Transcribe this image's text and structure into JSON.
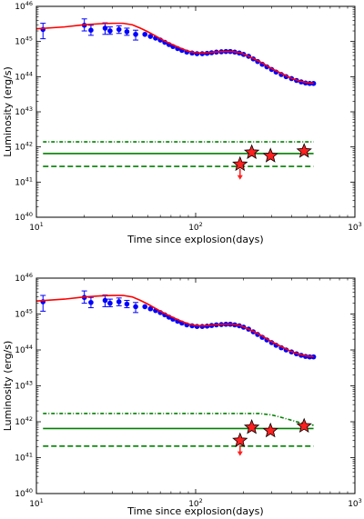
{
  "chart_data": [
    {
      "type": "scatter",
      "panel": "top",
      "xlabel": "Time since explosion(days)",
      "ylabel": "Luminosity (erg/s)",
      "x_scale": "log",
      "y_scale": "log",
      "xlim": [
        10,
        1000
      ],
      "ylim": [
        1e+40,
        1e+46
      ],
      "x_ticks": [
        {
          "value": 10,
          "base": "10",
          "exp": "1"
        },
        {
          "value": 100,
          "base": "10",
          "exp": "2"
        },
        {
          "value": 1000,
          "base": "10",
          "exp": "3"
        }
      ],
      "y_ticks": [
        {
          "value": 1e+40,
          "base": "10",
          "exp": "40"
        },
        {
          "value": 1e+41,
          "base": "10",
          "exp": "41"
        },
        {
          "value": 1e+42,
          "base": "10",
          "exp": "42"
        },
        {
          "value": 1e+43,
          "base": "10",
          "exp": "43"
        },
        {
          "value": 1e+44,
          "base": "10",
          "exp": "44"
        },
        {
          "value": 1e+45,
          "base": "10",
          "exp": "45"
        },
        {
          "value": 1e+46,
          "base": "10",
          "exp": "46"
        }
      ],
      "grid": false,
      "colors": {
        "data": "#0000ff",
        "model": "#ff0000",
        "limits": "#007f00",
        "stars": "#ff2020",
        "arrow": "#ff2020"
      },
      "series": [
        {
          "kind": "points_with_errors",
          "points": [
            {
              "x": 11,
              "y": 2.2e+45,
              "yerr": [
                1.2e+45,
                3.3e+45
              ]
            },
            {
              "x": 20,
              "y": 2.9e+45,
              "yerr": [
                2e+45,
                4.4e+45
              ]
            },
            {
              "x": 22,
              "y": 2.1e+45,
              "yerr": [
                1.5e+45,
                2.9e+45
              ]
            },
            {
              "x": 27,
              "y": 2.4e+45,
              "yerr": [
                1.6e+45,
                3.4e+45
              ]
            },
            {
              "x": 29,
              "y": 2e+45,
              "yerr": [
                1.6e+45,
                2.6e+45
              ]
            },
            {
              "x": 33,
              "y": 2.2e+45,
              "yerr": [
                1.7e+45,
                2.8e+45
              ]
            },
            {
              "x": 37,
              "y": 1.9e+45,
              "yerr": [
                1.5e+45,
                2.4e+45
              ]
            },
            {
              "x": 42,
              "y": 1.6e+45,
              "yerr": [
                1.1e+45,
                2.1e+45
              ]
            },
            {
              "x": 48,
              "y": 1.6e+45
            },
            {
              "x": 52,
              "y": 1.4e+45
            },
            {
              "x": 56,
              "y": 1.25e+45
            },
            {
              "x": 60,
              "y": 1.1e+45
            },
            {
              "x": 64,
              "y": 9.5e+44
            },
            {
              "x": 68,
              "y": 8.2e+44
            },
            {
              "x": 72,
              "y": 7.2e+44
            },
            {
              "x": 77,
              "y": 6.3e+44
            },
            {
              "x": 82,
              "y": 5.6e+44
            },
            {
              "x": 88,
              "y": 5e+44
            },
            {
              "x": 95,
              "y": 4.7e+44
            },
            {
              "x": 102,
              "y": 4.5e+44
            },
            {
              "x": 110,
              "y": 4.5e+44
            },
            {
              "x": 118,
              "y": 4.6e+44
            },
            {
              "x": 126,
              "y": 4.8e+44
            },
            {
              "x": 135,
              "y": 5e+44
            },
            {
              "x": 145,
              "y": 5.1e+44
            },
            {
              "x": 155,
              "y": 5.2e+44
            },
            {
              "x": 165,
              "y": 5.2e+44
            },
            {
              "x": 176,
              "y": 5e+44
            },
            {
              "x": 188,
              "y": 4.7e+44
            },
            {
              "x": 200,
              "y": 4.3e+44
            },
            {
              "x": 215,
              "y": 3.8e+44
            },
            {
              "x": 230,
              "y": 3.2e+44
            },
            {
              "x": 245,
              "y": 2.7e+44
            },
            {
              "x": 262,
              "y": 2.25e+44
            },
            {
              "x": 280,
              "y": 1.9e+44
            },
            {
              "x": 300,
              "y": 1.6e+44
            },
            {
              "x": 320,
              "y": 1.35e+44
            },
            {
              "x": 345,
              "y": 1.15e+44
            },
            {
              "x": 370,
              "y": 1e+44
            },
            {
              "x": 400,
              "y": 8.8e+43
            },
            {
              "x": 430,
              "y": 7.8e+43
            },
            {
              "x": 460,
              "y": 7.1e+43
            },
            {
              "x": 490,
              "y": 6.6e+43
            },
            {
              "x": 520,
              "y": 6.4e+43
            },
            {
              "x": 550,
              "y": 6.4e+43
            }
          ]
        },
        {
          "kind": "model_curve",
          "points": [
            [
              10,
              2.3e+45
            ],
            [
              15,
              2.6e+45
            ],
            [
              20,
              3e+45
            ],
            [
              25,
              3.2e+45
            ],
            [
              30,
              3.3e+45
            ],
            [
              35,
              3.3e+45
            ],
            [
              40,
              3e+45
            ],
            [
              45,
              2.4e+45
            ],
            [
              50,
              1.9e+45
            ],
            [
              55,
              1.5e+45
            ],
            [
              60,
              1.2e+45
            ],
            [
              65,
              1e+45
            ],
            [
              70,
              8.5e+44
            ],
            [
              80,
              6.5e+44
            ],
            [
              90,
              5.3e+44
            ],
            [
              100,
              4.8e+44
            ],
            [
              110,
              4.7e+44
            ],
            [
              120,
              4.8e+44
            ],
            [
              130,
              5e+44
            ],
            [
              150,
              5.2e+44
            ],
            [
              170,
              5.2e+44
            ],
            [
              190,
              4.8e+44
            ],
            [
              210,
              4e+44
            ],
            [
              230,
              3.3e+44
            ],
            [
              260,
              2.5e+44
            ],
            [
              300,
              1.7e+44
            ],
            [
              350,
              1.2e+44
            ],
            [
              400,
              9e+43
            ],
            [
              450,
              7.5e+43
            ],
            [
              500,
              6.8e+43
            ],
            [
              550,
              6.5e+43
            ]
          ]
        },
        {
          "kind": "limit_line",
          "style": "dashdot",
          "points": [
            [
              11,
              1.4e+42
            ],
            [
              550,
              1.4e+42
            ]
          ]
        },
        {
          "kind": "limit_line",
          "style": "solid",
          "points": [
            [
              11,
              6.5e+41
            ],
            [
              550,
              6.5e+41
            ]
          ]
        },
        {
          "kind": "limit_line",
          "style": "dashed",
          "points": [
            [
              11,
              2.8e+41
            ],
            [
              550,
              2.8e+41
            ]
          ]
        },
        {
          "kind": "stars",
          "points": [
            {
              "x": 190,
              "y": 3.2e+41,
              "upper_limit": true
            },
            {
              "x": 225,
              "y": 7e+41
            },
            {
              "x": 295,
              "y": 5.6e+41
            },
            {
              "x": 480,
              "y": 7.6e+41
            }
          ]
        }
      ]
    },
    {
      "type": "scatter",
      "panel": "bottom",
      "xlabel": "Time since explosion(days)",
      "ylabel": "Luminosity (erg/s)",
      "x_scale": "log",
      "y_scale": "log",
      "xlim": [
        10,
        1000
      ],
      "ylim": [
        1e+40,
        1e+46
      ],
      "x_ticks": [
        {
          "value": 10,
          "base": "10",
          "exp": "1"
        },
        {
          "value": 100,
          "base": "10",
          "exp": "2"
        },
        {
          "value": 1000,
          "base": "10",
          "exp": "3"
        }
      ],
      "y_ticks": [
        {
          "value": 1e+40,
          "base": "10",
          "exp": "40"
        },
        {
          "value": 1e+41,
          "base": "10",
          "exp": "41"
        },
        {
          "value": 1e+42,
          "base": "10",
          "exp": "42"
        },
        {
          "value": 1e+43,
          "base": "10",
          "exp": "43"
        },
        {
          "value": 1e+44,
          "base": "10",
          "exp": "44"
        },
        {
          "value": 1e+45,
          "base": "10",
          "exp": "45"
        },
        {
          "value": 1e+46,
          "base": "10",
          "exp": "46"
        }
      ],
      "grid": false,
      "colors": {
        "data": "#0000ff",
        "model": "#ff0000",
        "limits": "#007f00",
        "stars": "#ff2020",
        "arrow": "#ff2020"
      },
      "series": [
        {
          "kind": "points_with_errors",
          "points": [
            {
              "x": 11,
              "y": 2.2e+45,
              "yerr": [
                1.2e+45,
                3.3e+45
              ]
            },
            {
              "x": 20,
              "y": 2.9e+45,
              "yerr": [
                2e+45,
                4.4e+45
              ]
            },
            {
              "x": 22,
              "y": 2.1e+45,
              "yerr": [
                1.5e+45,
                2.9e+45
              ]
            },
            {
              "x": 27,
              "y": 2.4e+45,
              "yerr": [
                1.6e+45,
                3.4e+45
              ]
            },
            {
              "x": 29,
              "y": 2e+45,
              "yerr": [
                1.6e+45,
                2.6e+45
              ]
            },
            {
              "x": 33,
              "y": 2.2e+45,
              "yerr": [
                1.7e+45,
                2.8e+45
              ]
            },
            {
              "x": 37,
              "y": 1.9e+45,
              "yerr": [
                1.5e+45,
                2.4e+45
              ]
            },
            {
              "x": 42,
              "y": 1.6e+45,
              "yerr": [
                1.1e+45,
                2.1e+45
              ]
            },
            {
              "x": 48,
              "y": 1.6e+45
            },
            {
              "x": 52,
              "y": 1.4e+45
            },
            {
              "x": 56,
              "y": 1.25e+45
            },
            {
              "x": 60,
              "y": 1.1e+45
            },
            {
              "x": 64,
              "y": 9.5e+44
            },
            {
              "x": 68,
              "y": 8.2e+44
            },
            {
              "x": 72,
              "y": 7.2e+44
            },
            {
              "x": 77,
              "y": 6.3e+44
            },
            {
              "x": 82,
              "y": 5.6e+44
            },
            {
              "x": 88,
              "y": 5e+44
            },
            {
              "x": 95,
              "y": 4.7e+44
            },
            {
              "x": 102,
              "y": 4.5e+44
            },
            {
              "x": 110,
              "y": 4.5e+44
            },
            {
              "x": 118,
              "y": 4.6e+44
            },
            {
              "x": 126,
              "y": 4.8e+44
            },
            {
              "x": 135,
              "y": 5e+44
            },
            {
              "x": 145,
              "y": 5.1e+44
            },
            {
              "x": 155,
              "y": 5.2e+44
            },
            {
              "x": 165,
              "y": 5.2e+44
            },
            {
              "x": 176,
              "y": 5e+44
            },
            {
              "x": 188,
              "y": 4.7e+44
            },
            {
              "x": 200,
              "y": 4.3e+44
            },
            {
              "x": 215,
              "y": 3.8e+44
            },
            {
              "x": 230,
              "y": 3.2e+44
            },
            {
              "x": 245,
              "y": 2.7e+44
            },
            {
              "x": 262,
              "y": 2.25e+44
            },
            {
              "x": 280,
              "y": 1.9e+44
            },
            {
              "x": 300,
              "y": 1.6e+44
            },
            {
              "x": 320,
              "y": 1.35e+44
            },
            {
              "x": 345,
              "y": 1.15e+44
            },
            {
              "x": 370,
              "y": 1e+44
            },
            {
              "x": 400,
              "y": 8.8e+43
            },
            {
              "x": 430,
              "y": 7.8e+43
            },
            {
              "x": 460,
              "y": 7.1e+43
            },
            {
              "x": 490,
              "y": 6.6e+43
            },
            {
              "x": 520,
              "y": 6.4e+43
            },
            {
              "x": 550,
              "y": 6.4e+43
            }
          ]
        },
        {
          "kind": "model_curve",
          "points": [
            [
              10,
              2.3e+45
            ],
            [
              15,
              2.6e+45
            ],
            [
              20,
              3e+45
            ],
            [
              25,
              3.2e+45
            ],
            [
              30,
              3.3e+45
            ],
            [
              35,
              3.3e+45
            ],
            [
              40,
              3e+45
            ],
            [
              45,
              2.4e+45
            ],
            [
              50,
              1.9e+45
            ],
            [
              55,
              1.5e+45
            ],
            [
              60,
              1.2e+45
            ],
            [
              65,
              1e+45
            ],
            [
              70,
              8.5e+44
            ],
            [
              80,
              6.5e+44
            ],
            [
              90,
              5.3e+44
            ],
            [
              100,
              4.8e+44
            ],
            [
              110,
              4.7e+44
            ],
            [
              120,
              4.8e+44
            ],
            [
              130,
              5e+44
            ],
            [
              150,
              5.2e+44
            ],
            [
              170,
              5.2e+44
            ],
            [
              190,
              4.8e+44
            ],
            [
              210,
              4e+44
            ],
            [
              230,
              3.3e+44
            ],
            [
              260,
              2.5e+44
            ],
            [
              300,
              1.7e+44
            ],
            [
              350,
              1.2e+44
            ],
            [
              400,
              9e+43
            ],
            [
              450,
              7.5e+43
            ],
            [
              500,
              6.8e+43
            ],
            [
              550,
              6.5e+43
            ]
          ]
        },
        {
          "kind": "limit_line",
          "style": "dashdot",
          "points": [
            [
              11,
              1.7e+42
            ],
            [
              250,
              1.7e+42
            ],
            [
              300,
              1.55e+42
            ],
            [
              350,
              1.3e+42
            ],
            [
              400,
              1.1e+42
            ],
            [
              450,
              9.5e+41
            ],
            [
              500,
              8.5e+41
            ],
            [
              550,
              8e+41
            ]
          ]
        },
        {
          "kind": "limit_line",
          "style": "solid",
          "points": [
            [
              11,
              6.5e+41
            ],
            [
              550,
              6.5e+41
            ]
          ]
        },
        {
          "kind": "limit_line",
          "style": "dashed",
          "points": [
            [
              11,
              2.1e+41
            ],
            [
              550,
              2.1e+41
            ]
          ]
        },
        {
          "kind": "stars",
          "points": [
            {
              "x": 190,
              "y": 3e+41,
              "upper_limit": true
            },
            {
              "x": 225,
              "y": 7e+41
            },
            {
              "x": 295,
              "y": 5.6e+41
            },
            {
              "x": 480,
              "y": 7.6e+41
            }
          ]
        }
      ]
    }
  ]
}
